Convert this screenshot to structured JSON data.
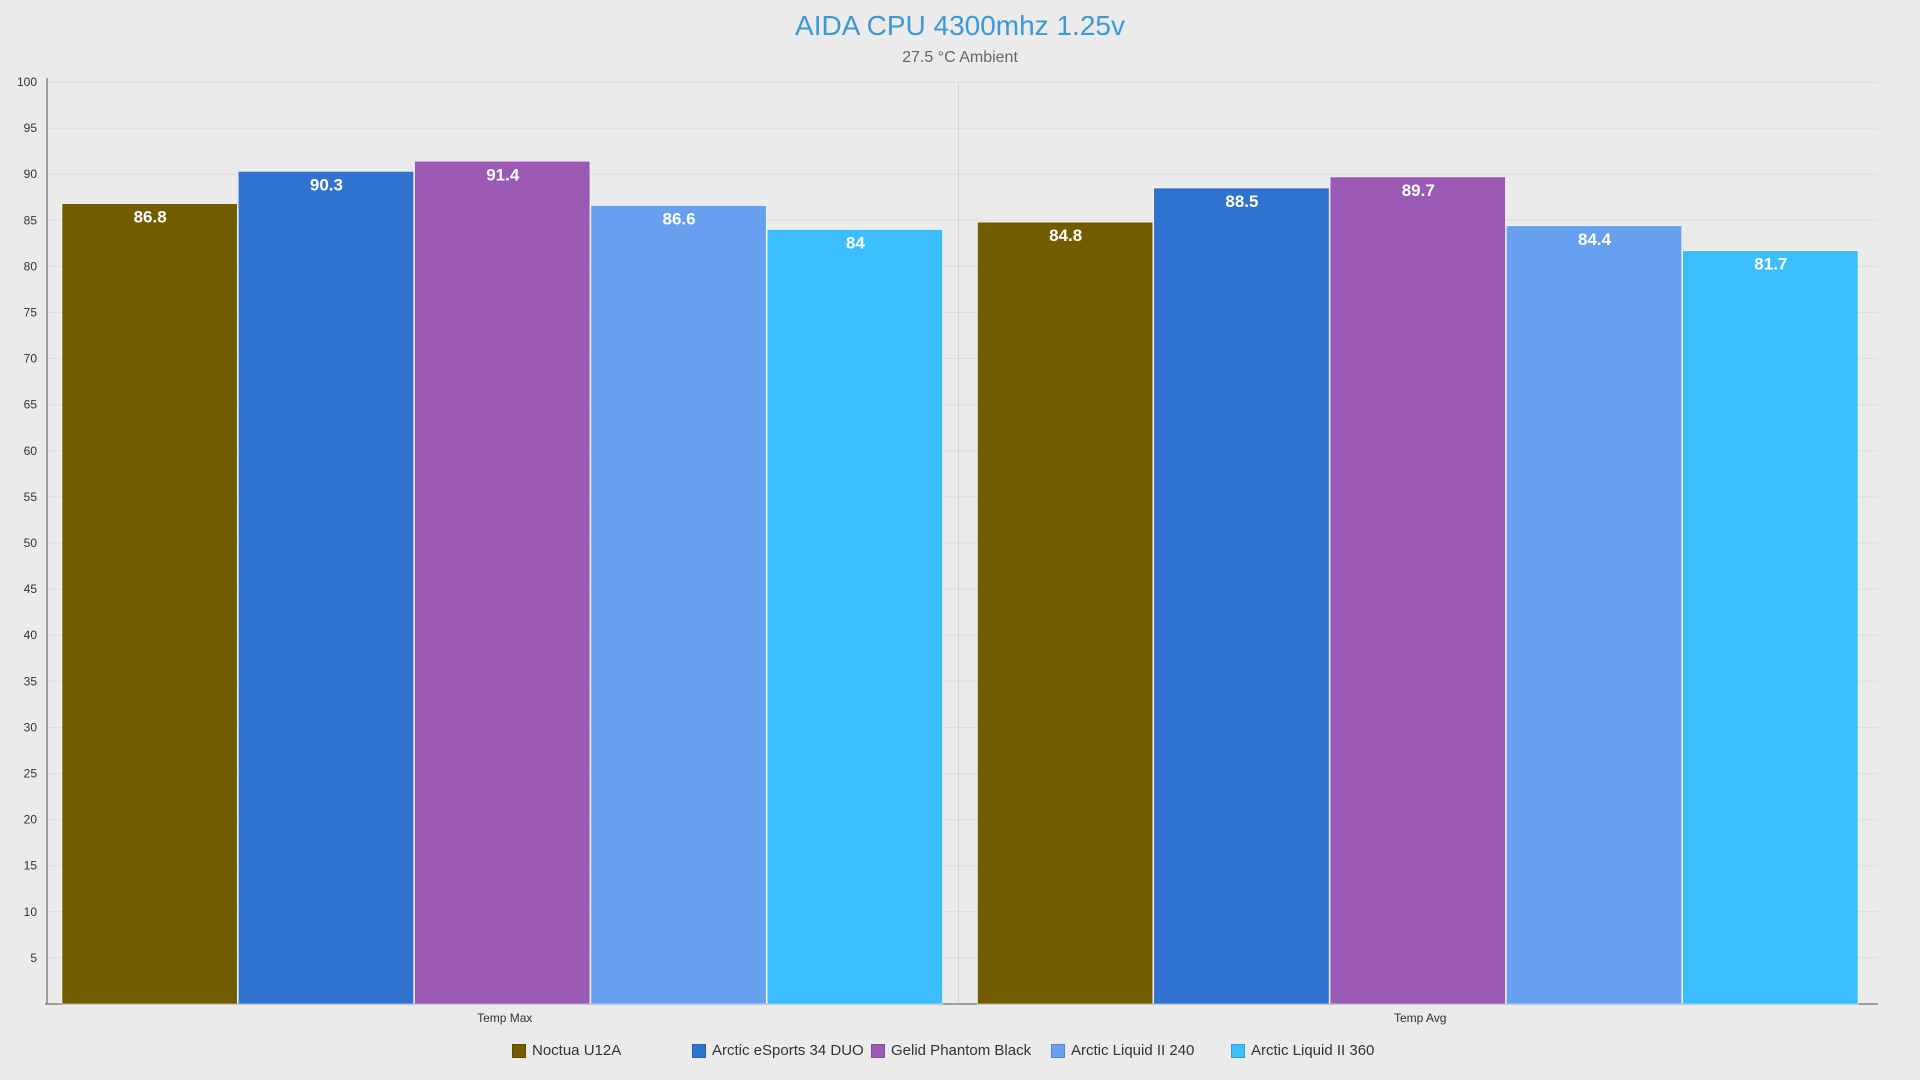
{
  "chart_data": {
    "type": "bar",
    "title": "AIDA CPU 4300mhz 1.25v",
    "subtitle": "27.5 °C Ambient",
    "xlabel": "",
    "ylabel": "",
    "categories": [
      "Temp Max",
      "Temp Avg"
    ],
    "ylim": [
      0,
      100
    ],
    "yticks": [
      5,
      10,
      15,
      20,
      25,
      30,
      35,
      40,
      45,
      50,
      55,
      60,
      65,
      70,
      75,
      80,
      85,
      90,
      95,
      100
    ],
    "grid": true,
    "legend_position": "bottom",
    "series": [
      {
        "name": "Noctua U12A",
        "color": "#735b00",
        "values": [
          86.8,
          84.8
        ]
      },
      {
        "name": "Arctic eSports 34 DUO",
        "color": "#2f72cf",
        "values": [
          90.3,
          88.5
        ]
      },
      {
        "name": "Gelid Phantom Black",
        "color": "#9a59b5",
        "values": [
          91.4,
          89.7
        ]
      },
      {
        "name": "Arctic Liquid II 240",
        "color": "#66a0ef",
        "values": [
          86.6,
          84.4
        ]
      },
      {
        "name": "Arctic Liquid II 360",
        "color": "#3bbdfe",
        "values": [
          84,
          81.7
        ]
      }
    ]
  }
}
